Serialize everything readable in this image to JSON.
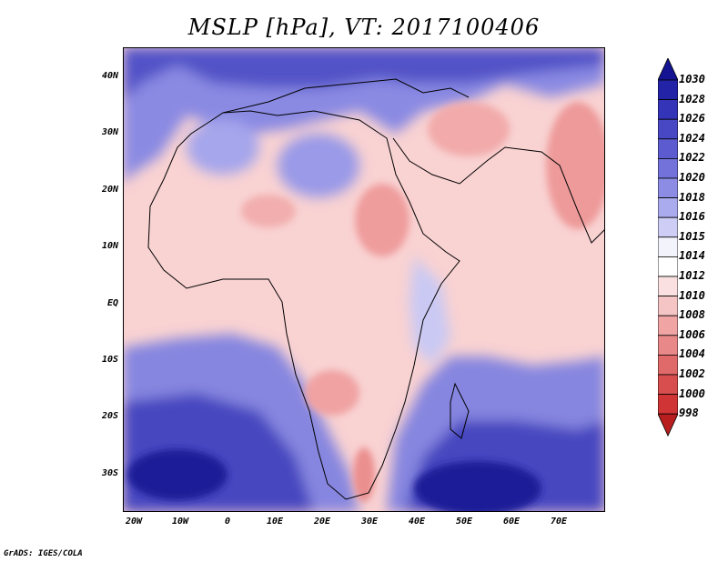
{
  "title": "MSLP [hPa], VT: 2017100406",
  "credit": "GrADS: IGES/COLA",
  "map": {
    "variable": "Mean Sea Level Pressure",
    "units": "hPa",
    "valid_time": "2017100406",
    "lon_ticks": [
      "20W",
      "10W",
      "0",
      "10E",
      "20E",
      "30E",
      "40E",
      "50E",
      "60E",
      "70E"
    ],
    "lat_ticks": [
      "40N",
      "30N",
      "20N",
      "10N",
      "EQ",
      "10S",
      "20S",
      "30S"
    ],
    "domain": {
      "lon": [
        -22,
        80
      ],
      "lat": [
        -37,
        45
      ]
    }
  },
  "colorbar": {
    "labels": [
      "1030",
      "1028",
      "1026",
      "1024",
      "1022",
      "1020",
      "1018",
      "1016",
      "1015",
      "1014",
      "1012",
      "1010",
      "1008",
      "1006",
      "1004",
      "1002",
      "1000",
      "998"
    ],
    "colors": [
      "#141493",
      "#2323a8",
      "#3434b8",
      "#4848c4",
      "#5c5cd0",
      "#7272da",
      "#8c8ce4",
      "#aaaaee",
      "#cdcdf6",
      "#f3f3fc",
      "#ffffff",
      "#fae0e0",
      "#f5c4c4",
      "#f0a4a4",
      "#e88888",
      "#e06a6a",
      "#d84e4e",
      "#d03434",
      "#b81e1e"
    ]
  }
}
